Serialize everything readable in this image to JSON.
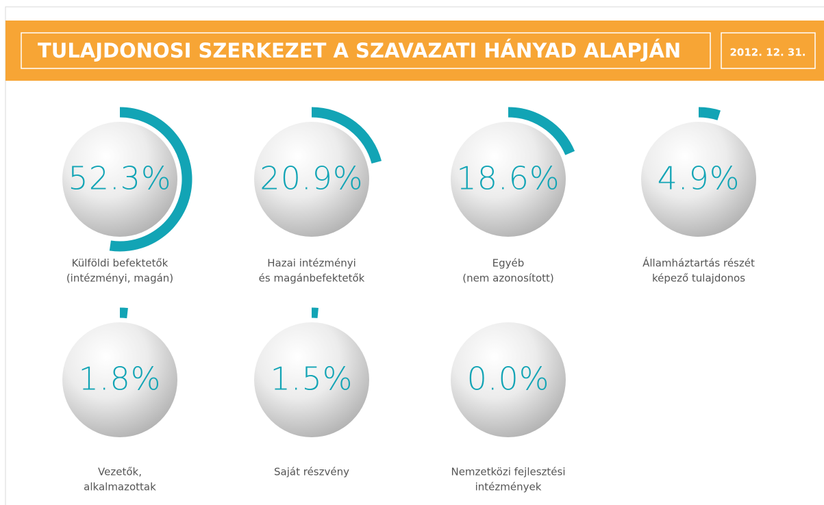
{
  "chart_data": {
    "type": "radial",
    "title": "TULAJDONOSI SZERKEZET A SZAVAZATI HÁNYAD ALAPJÁN",
    "date": "2012. 12. 31.",
    "categories": [
      [
        "Külföldi befektetők",
        "(intézményi, magán)"
      ],
      [
        "Hazai intézményi",
        "és magánbefektetők"
      ],
      [
        "Egyéb",
        "(nem azonosított)"
      ],
      [
        "Államháztartás részét",
        "képező tulajdonos"
      ],
      [
        "Vezetők,",
        "alkalmazottak"
      ],
      [
        "Saját részvény"
      ],
      [
        "Nemzetközi fejlesztési",
        "intézmények"
      ]
    ],
    "values": [
      52.3,
      20.9,
      18.6,
      4.9,
      1.8,
      1.5,
      0.0
    ],
    "value_labels": [
      "52.3%",
      "20.9%",
      "18.6%",
      "4.9%",
      "1.8%",
      "1.5%",
      "0.0%"
    ],
    "ylim": [
      0,
      100
    ],
    "color": "#12a4b5"
  }
}
